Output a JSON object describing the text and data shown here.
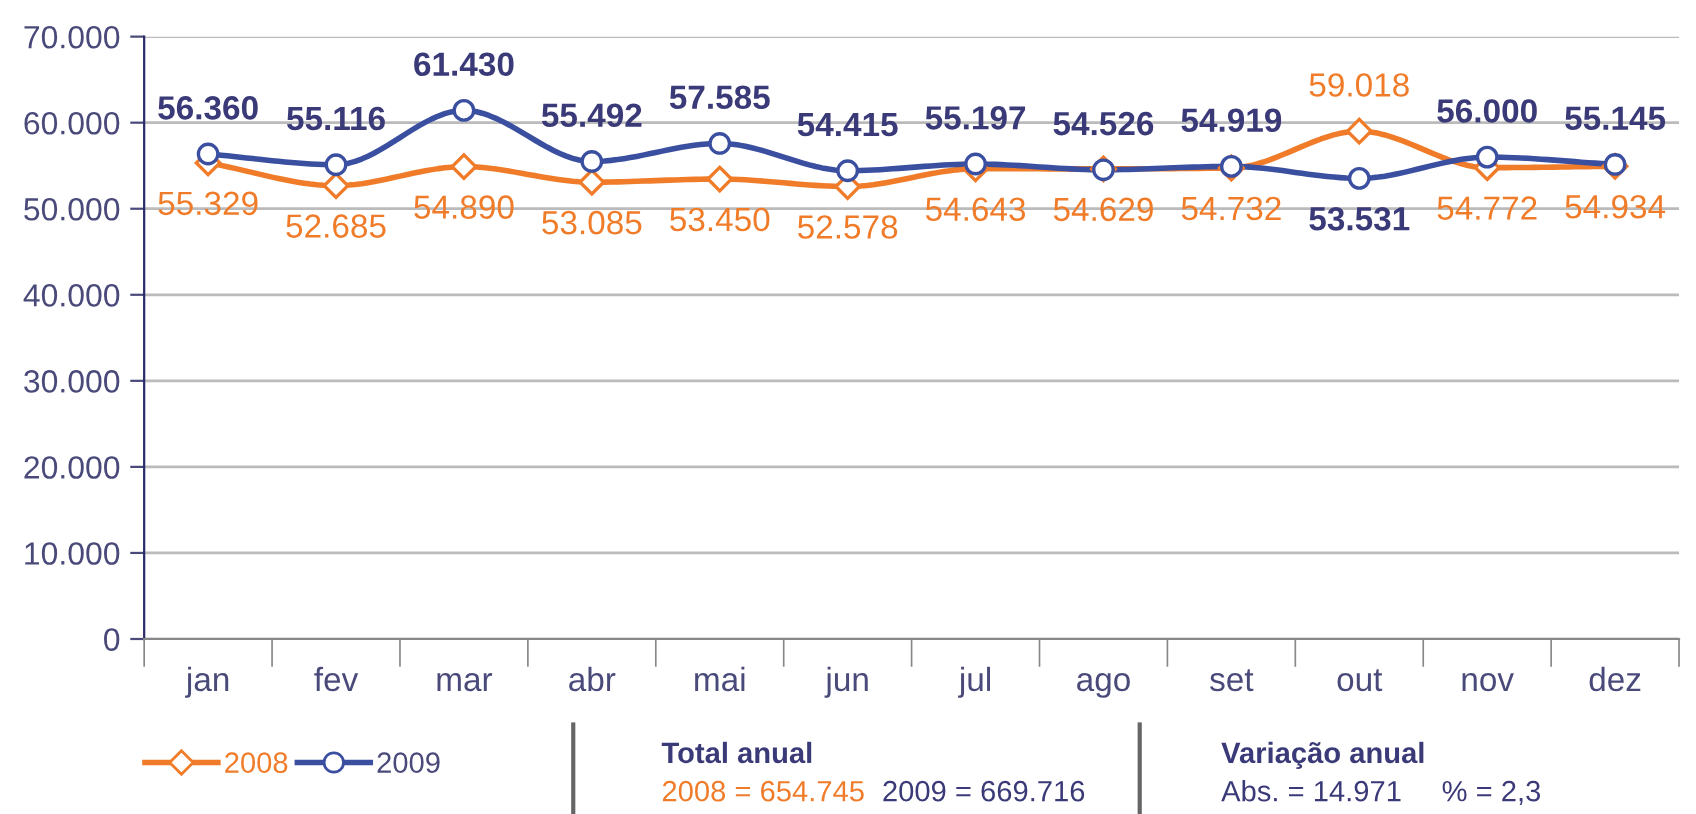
{
  "chart_data": {
    "type": "line",
    "categories": [
      "jan",
      "fev",
      "mar",
      "abr",
      "mai",
      "jun",
      "jul",
      "ago",
      "set",
      "out",
      "nov",
      "dez"
    ],
    "series": [
      {
        "name": "2008",
        "color": "#f07c2a",
        "marker": "diamond",
        "values": [
          55329,
          52685,
          54890,
          53085,
          53450,
          52578,
          54643,
          54629,
          54732,
          59018,
          54772,
          54934
        ],
        "value_labels": [
          "55.329",
          "52.685",
          "54.890",
          "53.085",
          "53.450",
          "52.578",
          "54.643",
          "54.629",
          "54.732",
          "59.018",
          "54.772",
          "54.934"
        ]
      },
      {
        "name": "2009",
        "color": "#3a4fa0",
        "marker": "circle",
        "values": [
          56360,
          55116,
          61430,
          55492,
          57585,
          54415,
          55197,
          54526,
          54919,
          53531,
          56000,
          55145
        ],
        "value_labels": [
          "56.360",
          "55.116",
          "61.430",
          "55.492",
          "57.585",
          "54.415",
          "55.197",
          "54.526",
          "54.919",
          "53.531",
          "56.000",
          "55.145"
        ]
      }
    ],
    "ylim": [
      0,
      70000
    ],
    "yticks": [
      {
        "value": 0,
        "label": "0"
      },
      {
        "value": 10000,
        "label": "10.000"
      },
      {
        "value": 20000,
        "label": "20.000"
      },
      {
        "value": 30000,
        "label": "30.000"
      },
      {
        "value": 40000,
        "label": "40.000"
      },
      {
        "value": 50000,
        "label": "50.000"
      },
      {
        "value": 60000,
        "label": "60.000"
      },
      {
        "value": 70000,
        "label": "70.000"
      }
    ],
    "grid": "y",
    "legend": "bottom left",
    "line_style": "solid",
    "annotations": [
      "Total anual",
      "2008 = 654.745",
      "2009 = 669.716",
      "Variação anual",
      "Abs. = 14.971",
      "% = 2,3"
    ]
  }
}
